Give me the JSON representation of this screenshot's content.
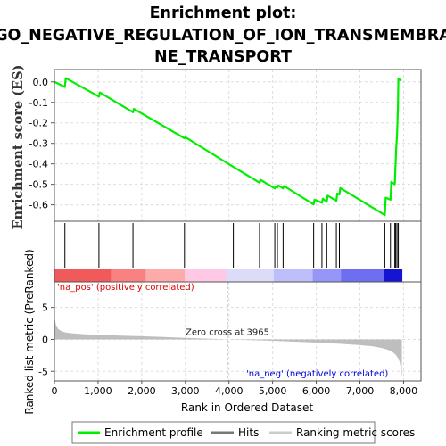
{
  "chart_data": {
    "type": "line",
    "title_lines": [
      "Enrichment plot:",
      "GO_NEGATIVE_REGULATION_OF_ION_TRANSMEMBRA",
      "NE_TRANSPORT"
    ],
    "xlabel": "Rank in Ordered Dataset",
    "ylabel_top": "Enrichment score (ES)",
    "ylabel_bottom": "Ranked list metric (PreRanked)",
    "xlim": [
      0,
      8400
    ],
    "x_ticks": [
      0,
      1000,
      2000,
      3000,
      4000,
      5000,
      6000,
      7000,
      8000
    ],
    "x_tick_labels": [
      "0",
      "1,000",
      "2,000",
      "3,000",
      "4,000",
      "5,000",
      "6,000",
      "7,000",
      "8,000"
    ],
    "es_ylim": [
      -0.68,
      0.06
    ],
    "es_ticks": [
      0.0,
      -0.1,
      -0.2,
      -0.3,
      -0.4,
      -0.5,
      -0.6
    ],
    "es_tick_labels": [
      "0.0",
      "-0.1",
      "-0.2",
      "-0.3",
      "-0.4",
      "-0.5",
      "-0.6"
    ],
    "enrichment_profile": {
      "x": [
        0,
        240,
        260,
        1020,
        1040,
        1800,
        1820,
        2980,
        3000,
        4100,
        4700,
        4720,
        5050,
        5070,
        5110,
        5130,
        5240,
        5260,
        5940,
        5960,
        6130,
        6150,
        6240,
        6260,
        6460,
        6480,
        6530,
        6550,
        7570,
        7590,
        7700,
        7720,
        7800,
        7810,
        7820,
        7830,
        7850,
        7870,
        7880,
        7950
      ],
      "y": [
        0.0,
        -0.025,
        0.018,
        -0.072,
        -0.052,
        -0.148,
        -0.132,
        -0.275,
        -0.27,
        -0.415,
        -0.492,
        -0.478,
        -0.52,
        -0.51,
        -0.515,
        -0.505,
        -0.52,
        -0.508,
        -0.598,
        -0.575,
        -0.59,
        -0.57,
        -0.585,
        -0.555,
        -0.58,
        -0.545,
        -0.55,
        -0.518,
        -0.65,
        -0.565,
        -0.575,
        -0.488,
        -0.5,
        -0.44,
        -0.39,
        -0.33,
        -0.26,
        -0.13,
        0.015,
        0.005
      ]
    },
    "hits": [
      240,
      1020,
      1800,
      2980,
      4100,
      4700,
      5050,
      5110,
      5240,
      5940,
      6130,
      6240,
      6460,
      6530,
      7570,
      7700,
      7800,
      7820,
      7850,
      7880
    ],
    "metric_ylim": [
      -6.5,
      9
    ],
    "metric_ticks": [
      5,
      0,
      -5
    ],
    "metric_tick_labels": [
      "5",
      "0",
      "-5"
    ],
    "metric_curve": {
      "x": [
        0,
        10,
        30,
        60,
        100,
        160,
        250,
        400,
        700,
        1000,
        1500,
        2000,
        2500,
        3000,
        3500,
        3965,
        4500,
        5000,
        5500,
        6000,
        6500,
        7000,
        7300,
        7500,
        7650,
        7750,
        7820,
        7870,
        7910,
        7940,
        7960
      ],
      "y": [
        5.5,
        3.2,
        2.4,
        1.9,
        1.55,
        1.3,
        1.1,
        0.95,
        0.8,
        0.72,
        0.6,
        0.5,
        0.38,
        0.25,
        0.12,
        0.0,
        -0.1,
        -0.22,
        -0.36,
        -0.5,
        -0.66,
        -0.9,
        -1.1,
        -1.35,
        -1.65,
        -2.0,
        -2.4,
        -2.9,
        -3.5,
        -4.5,
        -6.0
      ]
    },
    "zero_cross_label": "Zero cross at 3965",
    "zero_cross": 3965,
    "pos_label": "'na_pos' (positively correlated)",
    "neg_label": "'na_neg' (negatively correlated)",
    "legend": [
      "Enrichment profile",
      "Hits",
      "Ranking metric scores"
    ],
    "colors": {
      "profile": "#00ee00",
      "hits": "#000000",
      "metric": "#bebebe",
      "pos_text": "#dd0000",
      "neg_text": "#0000dd",
      "zero_line": "#aaaaaa",
      "grid": "#dddddd"
    }
  }
}
